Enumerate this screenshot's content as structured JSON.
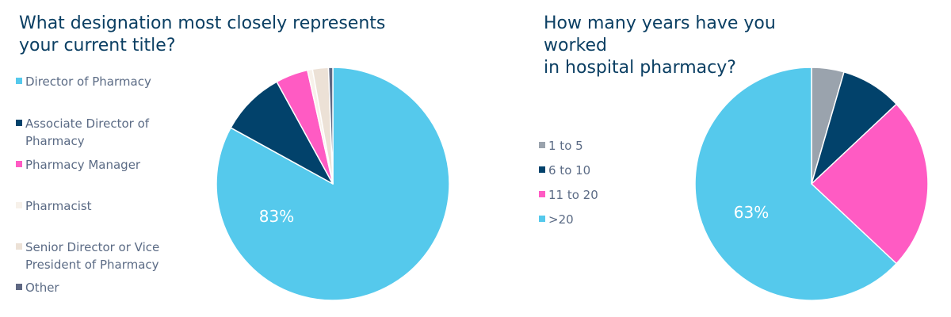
{
  "chart_data": [
    {
      "type": "pie",
      "title_lines": [
        "What designation most closely represents",
        "your current title?"
      ],
      "legend_placement": "left",
      "slices": [
        {
          "label_lines": [
            "Director of Pharmacy"
          ],
          "value": 83,
          "color": "#55c9ec"
        },
        {
          "label_lines": [
            "Associate Director of",
            "Pharmacy"
          ],
          "value": 9,
          "color": "#02426b"
        },
        {
          "label_lines": [
            "Pharmacy Manager"
          ],
          "value": 4.5,
          "color": "#ff5bc3"
        },
        {
          "label_lines": [
            "Pharmacist"
          ],
          "value": 0.7,
          "color": "#f7f1ea"
        },
        {
          "label_lines": [
            "Senior Director or Vice",
            "President of Pharmacy"
          ],
          "value": 2.2,
          "color": "#ece1d6"
        },
        {
          "label_lines": [
            "Other"
          ],
          "value": 0.6,
          "color": "#5f6883"
        }
      ],
      "data_label": "83%"
    },
    {
      "type": "pie",
      "title_lines": [
        "How many years have you worked",
        "in hospital pharmacy?"
      ],
      "legend_placement": "left",
      "slices": [
        {
          "label_lines": [
            "1 to 5"
          ],
          "value": 4.5,
          "color": "#9aa3ad"
        },
        {
          "label_lines": [
            "6 to 10"
          ],
          "value": 8.5,
          "color": "#02426b"
        },
        {
          "label_lines": [
            "11 to 20"
          ],
          "value": 24,
          "color": "#ff5bc3"
        },
        {
          "label_lines": [
            ">20"
          ],
          "value": 63,
          "color": "#55c9ec"
        }
      ],
      "data_label": "63%"
    }
  ]
}
